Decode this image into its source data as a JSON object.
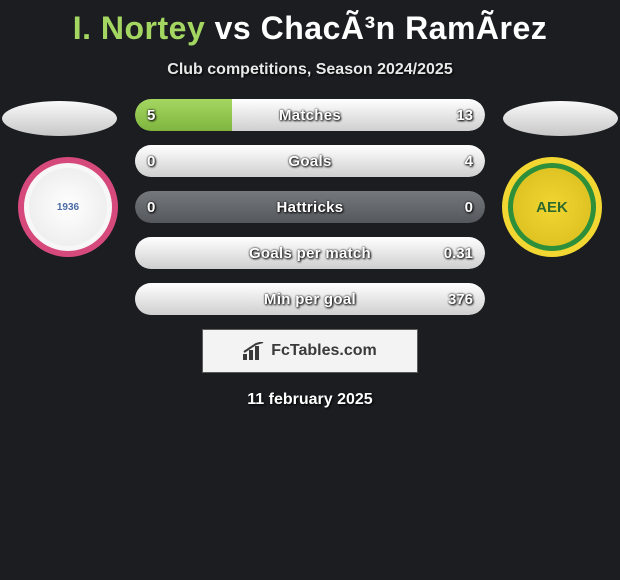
{
  "title": {
    "player1": "I. Nortey",
    "vs": "vs",
    "player2": "ChacÃ³n RamÃ­rez",
    "player1_color": "#a4d761",
    "player2_color": "#ffffff"
  },
  "subtitle": "Club competitions, Season 2024/2025",
  "date": "11 february 2025",
  "colors": {
    "background": "#1b1d21",
    "fill_left": "#a4d761",
    "fill_right": "#ffffff",
    "bar_bg": "#6b6e73",
    "bar_bg_alt": "#4e5156"
  },
  "bars": [
    {
      "label": "Matches",
      "left": "5",
      "right": "13",
      "left_pct": 27.8,
      "right_pct": 72.2
    },
    {
      "label": "Goals",
      "left": "0",
      "right": "4",
      "left_pct": 0.0,
      "right_pct": 100.0
    },
    {
      "label": "Hattricks",
      "left": "0",
      "right": "0",
      "left_pct": 0.0,
      "right_pct": 0.0
    },
    {
      "label": "Goals per match",
      "left": "",
      "right": "0.31",
      "left_pct": 0.0,
      "right_pct": 100.0
    },
    {
      "label": "Min per goal",
      "left": "",
      "right": "376",
      "left_pct": 0.0,
      "right_pct": 100.0
    }
  ],
  "crest_left": {
    "text": "1936",
    "border": "#d64a7b",
    "bg": "#f7f7f7"
  },
  "crest_right": {
    "text": "AEK",
    "border": "#f2d631",
    "bg": "#2e8f3a"
  },
  "footer": {
    "brand": "FcTables.com"
  }
}
